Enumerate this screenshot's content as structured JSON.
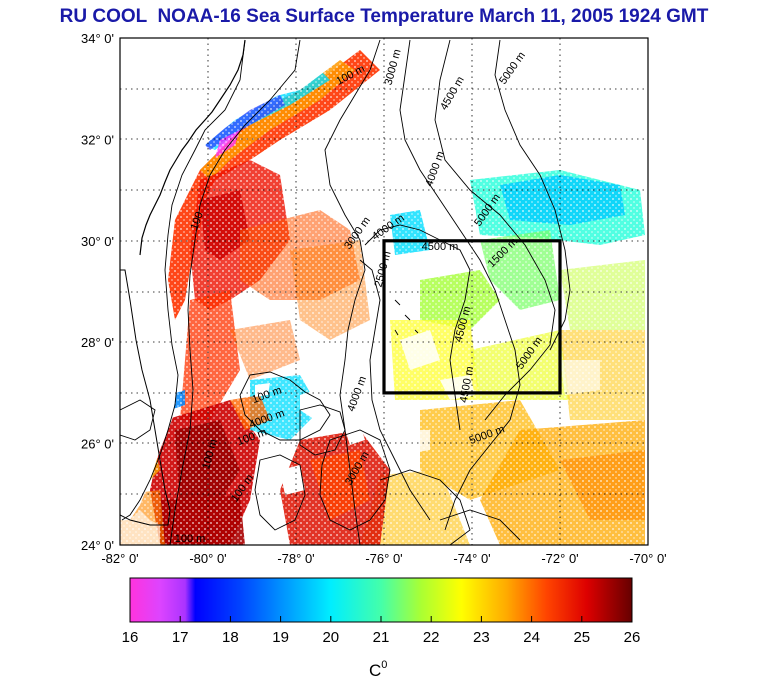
{
  "title": "RU COOL  NOAA-16 Sea Surface Temperature March 11, 2005 1924 GMT",
  "map": {
    "lat_labels": [
      "34° 0'",
      "32° 0'",
      "30° 0'",
      "28° 0'",
      "26° 0'",
      "24° 0'"
    ],
    "lon_labels": [
      "-82° 0'",
      "-80° 0'",
      "-78° 0'",
      "-76° 0'",
      "-74° 0'",
      "-72° 0'",
      "-70° 0'"
    ],
    "lat_range": [
      24,
      34
    ],
    "lon_range": [
      -82,
      -70
    ],
    "study_box": {
      "lon": [
        -76,
        -72
      ],
      "lat": [
        27,
        30
      ]
    },
    "contour_labels": [
      "100 m",
      "3000 m",
      "4500 m",
      "5000 m",
      "4000 m",
      "5000 m",
      "100",
      "3000 m",
      "4000 m",
      "4500 m",
      "1500 m",
      "2500 m",
      "4500 m",
      "5000 m",
      "4500 m",
      "4000 m",
      "100 m",
      "4000 m",
      "100 m",
      "5000 m",
      "100 m",
      "100 m",
      "3000 m",
      "100 m"
    ]
  },
  "colorbar": {
    "ticks": [
      "16",
      "17",
      "18",
      "19",
      "20",
      "21",
      "22",
      "23",
      "24",
      "25",
      "26"
    ],
    "unit_label": "C",
    "unit_sup": "0",
    "colors": [
      "#ff33cc",
      "#cc33ff",
      "#0000ff",
      "#0066ff",
      "#00bbff",
      "#33ffcc",
      "#99ff33",
      "#ffff00",
      "#ffaa00",
      "#ff3300",
      "#aa0000",
      "#700000"
    ]
  }
}
